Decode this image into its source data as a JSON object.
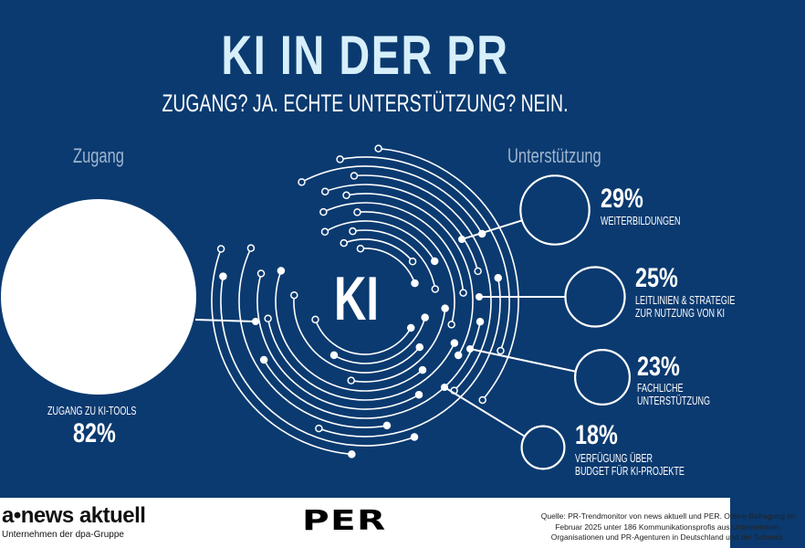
{
  "header": {
    "title": "KI IN DER PR",
    "subtitle": "ZUGANG? JA. ECHTE UNTERSTÜTZUNG? NEIN."
  },
  "sections": {
    "left": "Zugang",
    "right": "Unterstützung"
  },
  "center_label": "KI",
  "colors": {
    "background": "#0b3a70",
    "title": "#d7effa",
    "section_heading": "#9fb6cf",
    "circles": "#ffffff"
  },
  "chart_data": {
    "type": "scatter",
    "title": "KI IN DER PR",
    "access": {
      "label": "ZUGANG ZU KI-TOOLS",
      "value": 82,
      "value_text": "82%"
    },
    "support": [
      {
        "label_lines": [
          "WEITERBILDUNGEN"
        ],
        "value": 29,
        "value_text": "29%"
      },
      {
        "label_lines": [
          "LEITLINIEN & STRATEGIE",
          "ZUR NUTZUNG VON KI"
        ],
        "value": 25,
        "value_text": "25%"
      },
      {
        "label_lines": [
          "FACHLICHE",
          "UNTERSTÜTZUNG"
        ],
        "value": 23,
        "value_text": "23%"
      },
      {
        "label_lines": [
          "VERFÜGUNG ÜBER",
          "BUDGET FÜR KI-PROJEKTE"
        ],
        "value": 18,
        "value_text": "18%"
      }
    ]
  },
  "footer": {
    "newsaktuell_logo": "a•news aktuell",
    "newsaktuell_sub": "Unternehmen der dpa-Gruppe",
    "per_logo": "PER",
    "source_lines": [
      "Quelle: PR-Trendmonitor von news aktuell und PER. Online-Befragung im",
      "Februar 2025 unter 186 Kommunikationsprofis aus Unternehmen,",
      "Organisationen und PR-Agenturen in Deutschland und der Schweiz."
    ]
  }
}
